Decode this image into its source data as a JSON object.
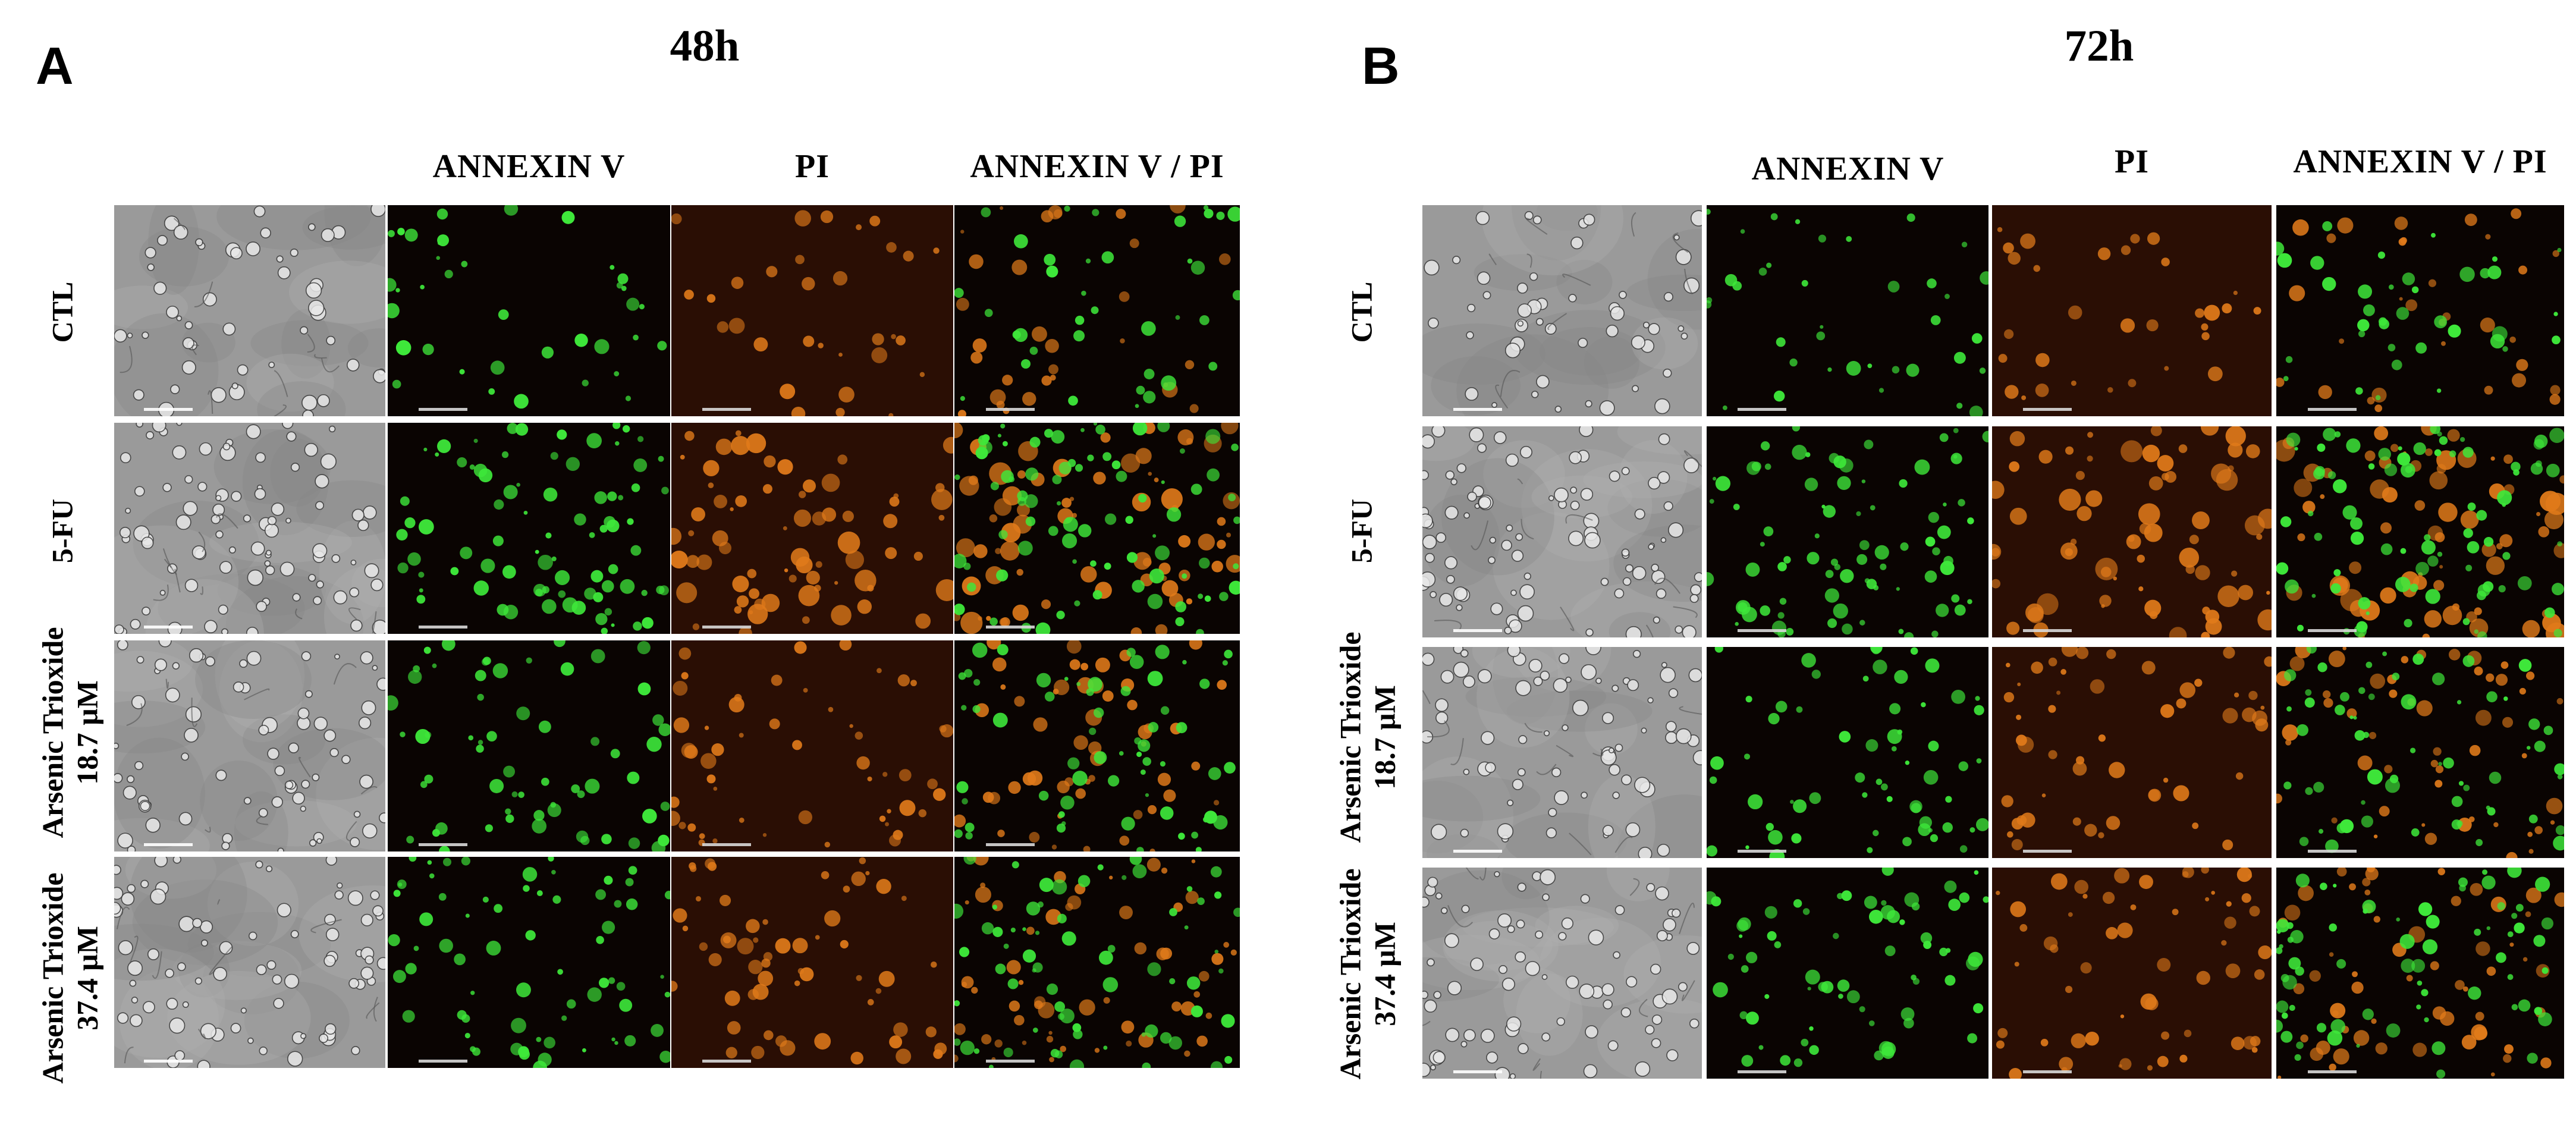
{
  "panels": [
    {
      "id": "A",
      "letter": "A",
      "timepoint": "48h",
      "columns": [
        "ANNEXIN V",
        "PI",
        "ANNEXIN V / PI"
      ],
      "rows": [
        {
          "lines": [
            "CTL"
          ]
        },
        {
          "lines": [
            "5-FU"
          ]
        },
        {
          "lines": [
            "Arsenic Trioxide",
            "18.7  μM"
          ]
        },
        {
          "lines": [
            "Arsenic Trioxide",
            "37.4 μM"
          ]
        }
      ]
    },
    {
      "id": "B",
      "letter": "B",
      "timepoint": "72h",
      "columns": [
        "ANNEXIN V",
        "PI",
        "ANNEXIN V / PI"
      ],
      "rows": [
        {
          "lines": [
            "CTL"
          ]
        },
        {
          "lines": [
            "5-FU"
          ]
        },
        {
          "lines": [
            "Arsenic Trioxide",
            "18.7  μM"
          ]
        },
        {
          "lines": [
            "Arsenic Trioxide",
            "37.4 μM"
          ]
        }
      ]
    }
  ],
  "image_types": [
    "brightfield",
    "annexin-v-fluorescence",
    "pi-fluorescence",
    "annexin-v-pi-merge"
  ],
  "colors": {
    "annexin_signal": "#3ee83a",
    "pi_signal": "#e07a1a",
    "fluorescence_background": "#0a0402",
    "brightfield_background": "#9a9a9a"
  }
}
